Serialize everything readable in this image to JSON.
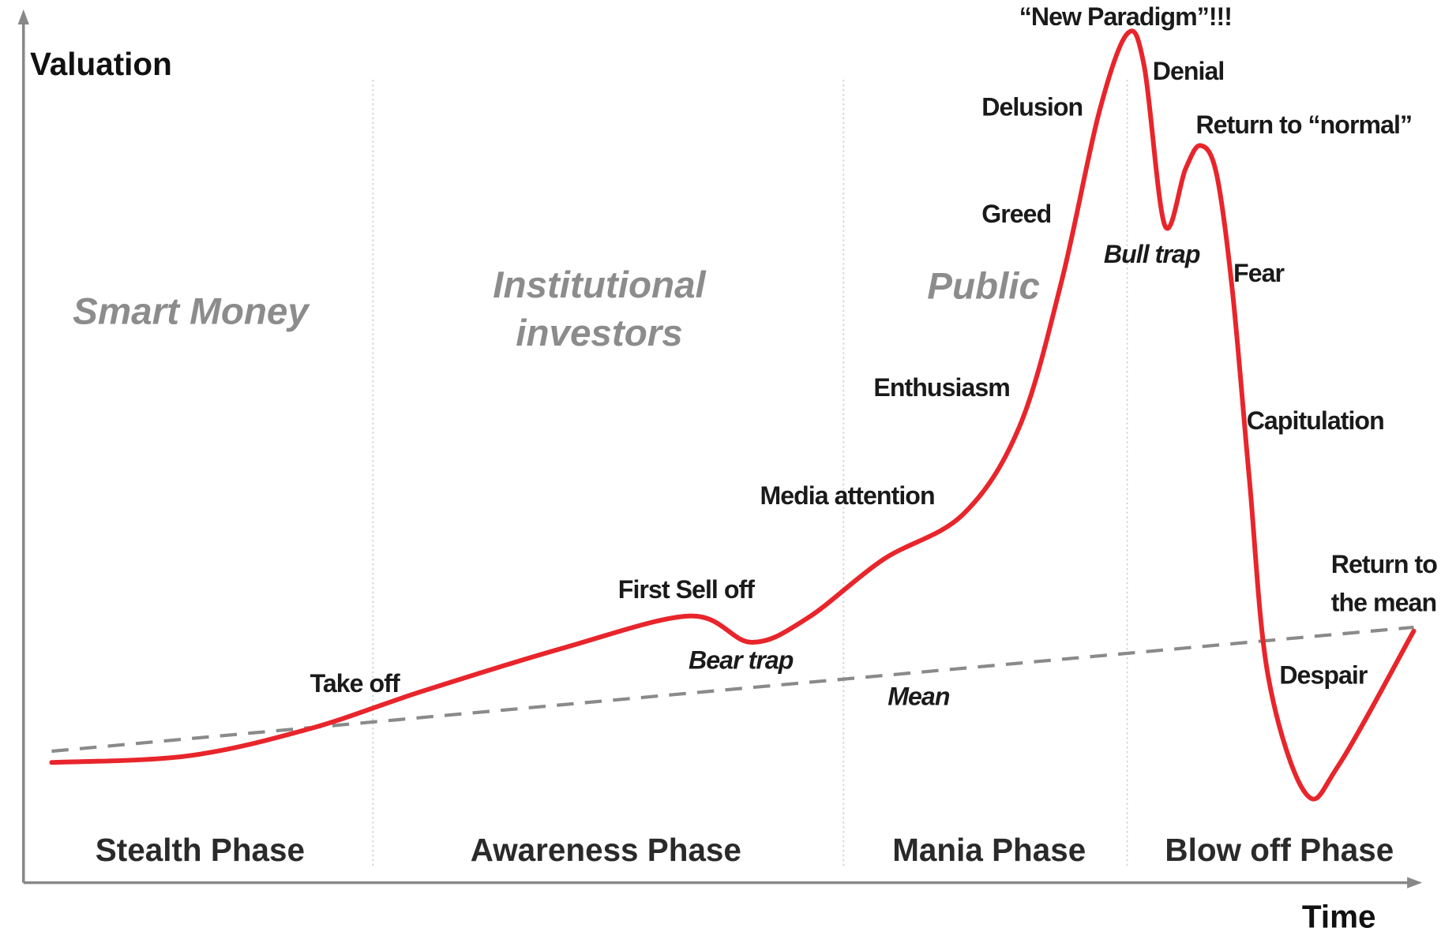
{
  "axes": {
    "y_label": "Valuation",
    "x_label": "Time"
  },
  "phases": [
    "Stealth Phase",
    "Awareness Phase",
    "Mania Phase",
    "Blow off Phase"
  ],
  "investors": [
    [
      "Smart Money"
    ],
    [
      "Institutional",
      "investors"
    ],
    [
      "Public"
    ]
  ],
  "annotations": [
    [
      "Take off"
    ],
    [
      "First Sell off"
    ],
    [
      "Bear trap"
    ],
    [
      "Media attention"
    ],
    [
      "Enthusiasm"
    ],
    [
      "Greed"
    ],
    [
      "Delusion"
    ],
    [
      "“New Paradigm”!!!"
    ],
    [
      "Denial"
    ],
    [
      "Bull trap"
    ],
    [
      "Return to “normal”"
    ],
    [
      "Fear"
    ],
    [
      "Capitulation"
    ],
    [
      "Despair"
    ],
    [
      "Return to",
      "the mean"
    ]
  ],
  "mean_label": "Mean"
}
